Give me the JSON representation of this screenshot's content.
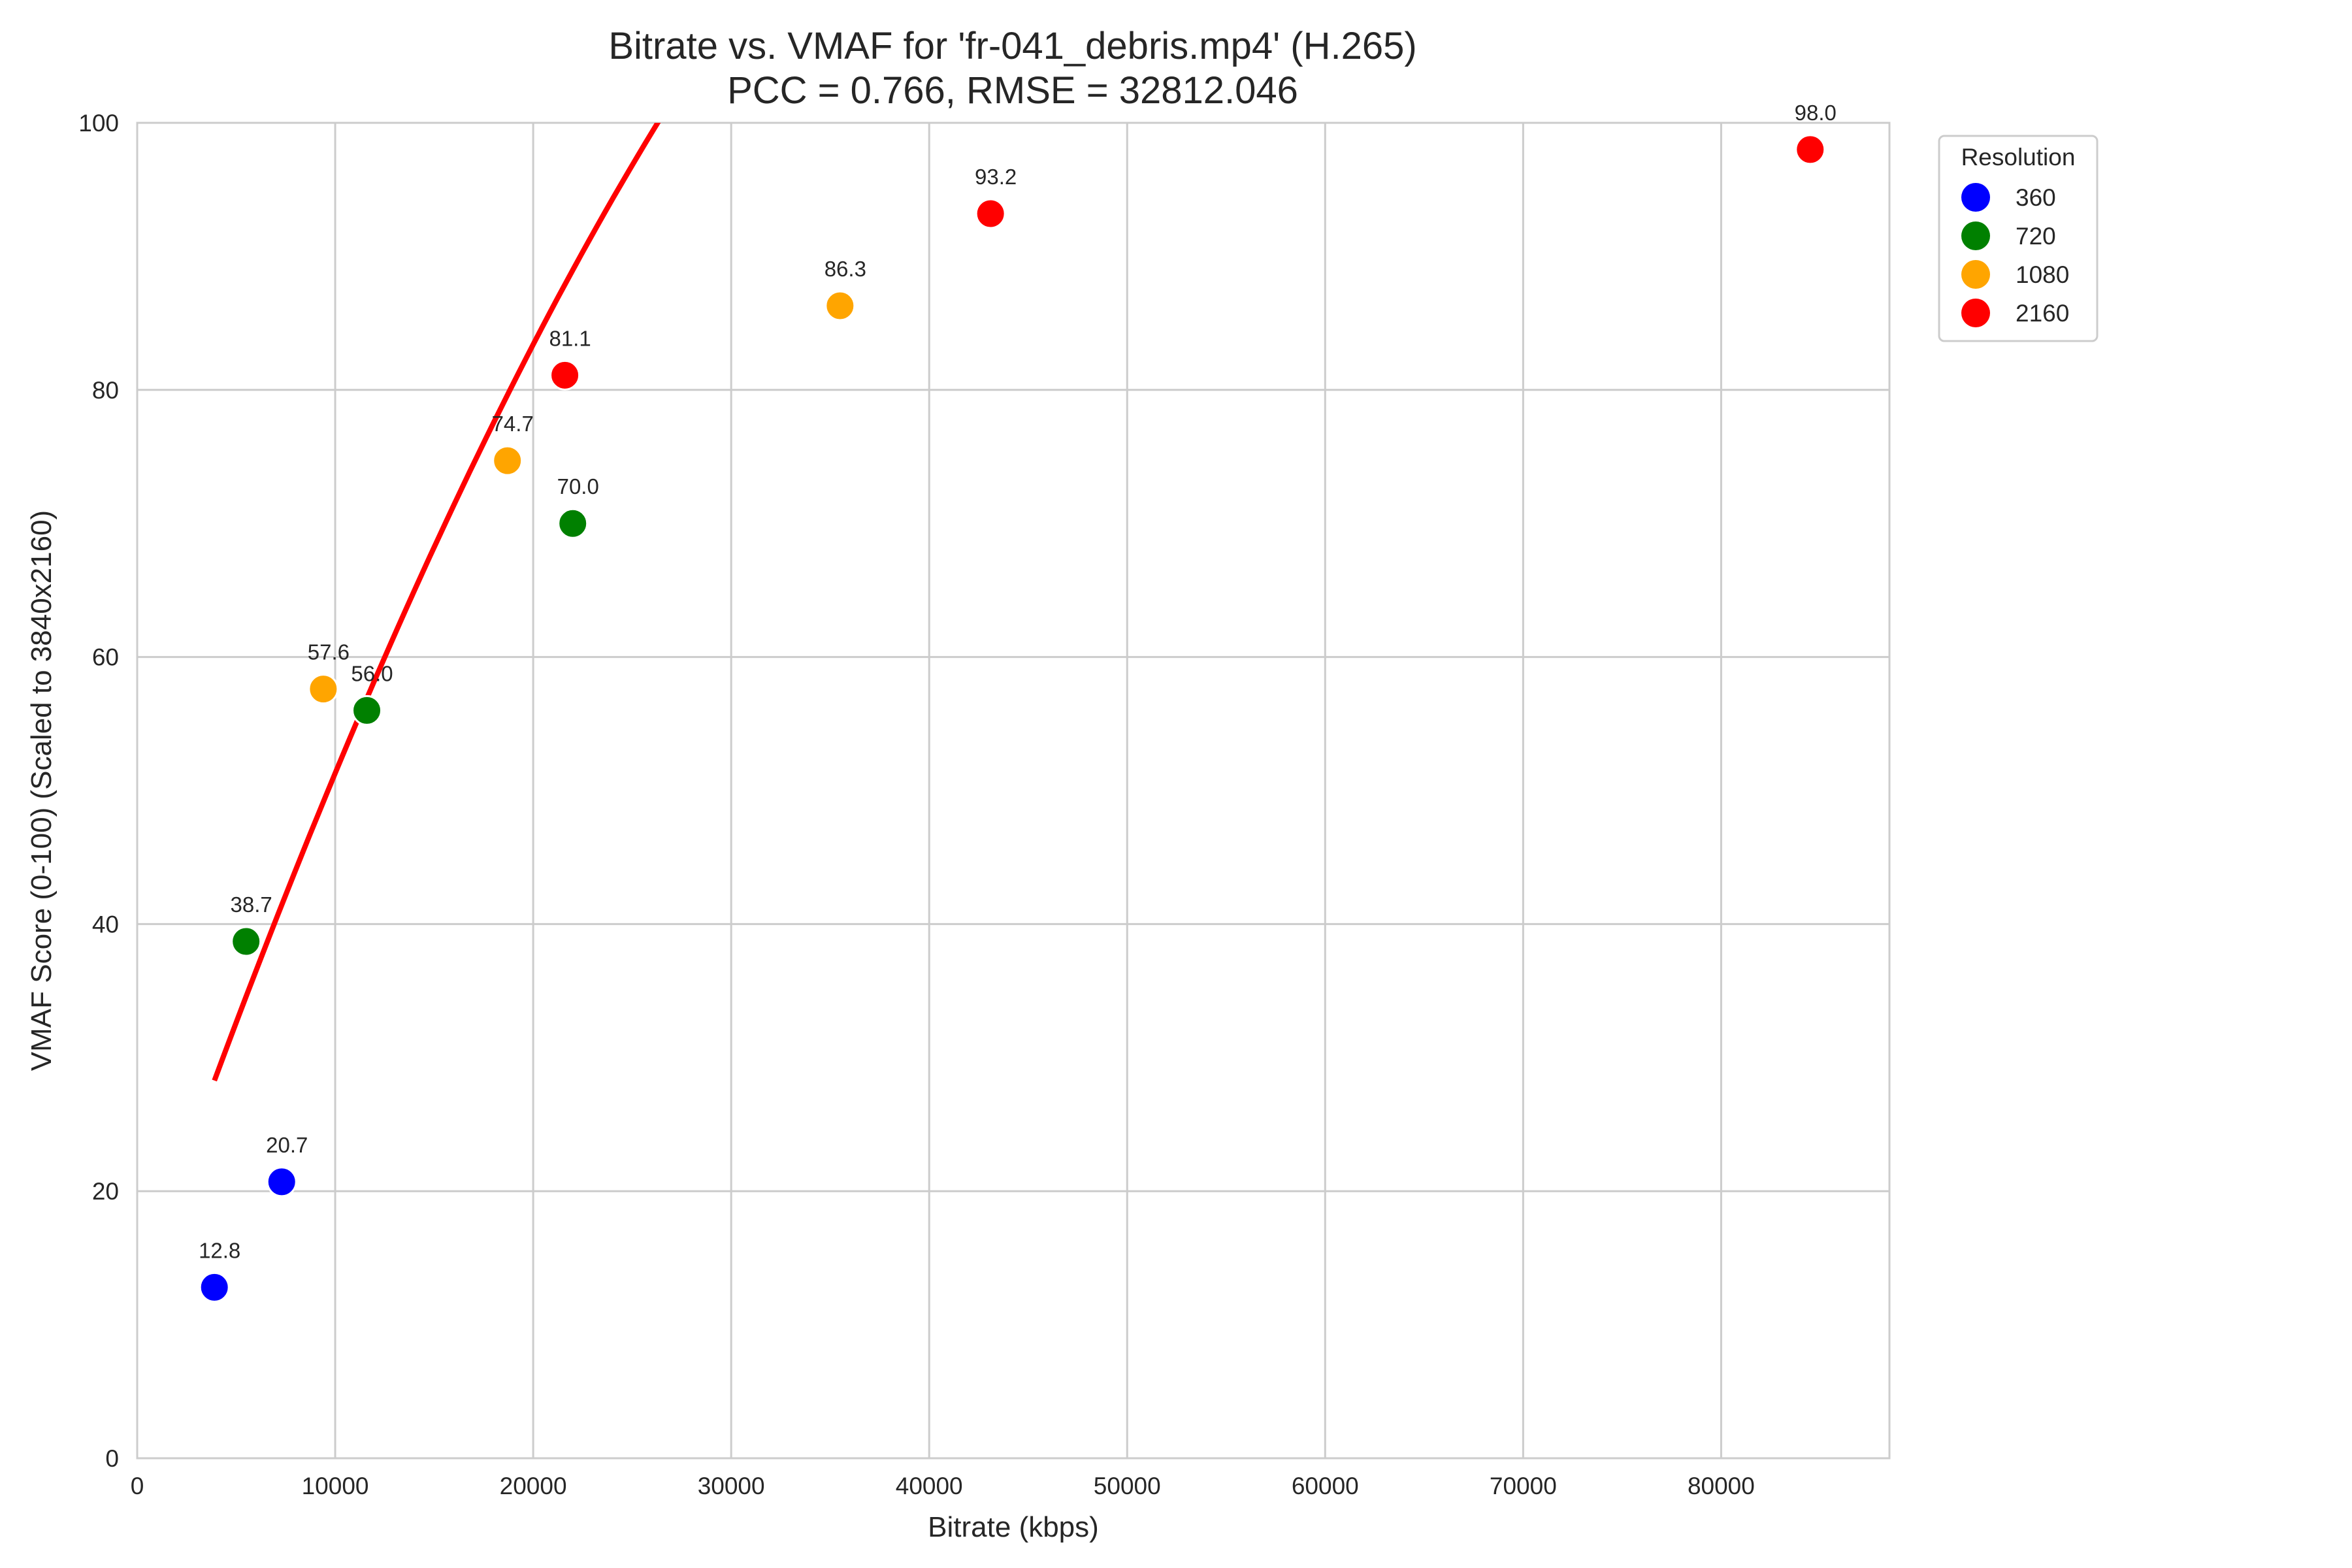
{
  "chart_data": {
    "type": "scatter",
    "title": "Bitrate vs. VMAF for 'fr-041_debris.mp4' (H.265)",
    "subtitle": "PCC = 0.766, RMSE = 32812.046",
    "xlabel": "Bitrate (kbps)",
    "ylabel": "VMAF Score (0-100) (Scaled to 3840x2160)",
    "xlim": [
      0,
      88500
    ],
    "ylim": [
      0,
      100
    ],
    "x_ticks": [
      0,
      10000,
      20000,
      30000,
      40000,
      50000,
      60000,
      70000,
      80000
    ],
    "x_tick_labels": [
      "0",
      "10000",
      "20000",
      "30000",
      "40000",
      "50000",
      "60000",
      "70000",
      "80000"
    ],
    "y_ticks": [
      0,
      20,
      40,
      60,
      80,
      100
    ],
    "y_tick_labels": [
      "0",
      "20",
      "40",
      "60",
      "80",
      "100"
    ],
    "grid": true,
    "legend": {
      "title": "Resolution",
      "placement": "outside-top-right",
      "entries": [
        "360",
        "720",
        "1080",
        "2160"
      ]
    },
    "series": [
      {
        "name": "360",
        "color": "#0000ff",
        "points": [
          {
            "x": 3900,
            "y": 12.8,
            "label": "12.8"
          },
          {
            "x": 7300,
            "y": 20.7,
            "label": "20.7"
          }
        ]
      },
      {
        "name": "720",
        "color": "#008000",
        "points": [
          {
            "x": 5500,
            "y": 38.7,
            "label": "38.7"
          },
          {
            "x": 11600,
            "y": 56.0,
            "label": "56.0"
          },
          {
            "x": 22000,
            "y": 70.0,
            "label": "70.0"
          }
        ]
      },
      {
        "name": "1080",
        "color": "#ffa500",
        "points": [
          {
            "x": 9400,
            "y": 57.6,
            "label": "57.6"
          },
          {
            "x": 18700,
            "y": 74.7,
            "label": "74.7"
          },
          {
            "x": 35500,
            "y": 86.3,
            "label": "86.3"
          }
        ]
      },
      {
        "name": "2160",
        "color": "#ff0000",
        "points": [
          {
            "x": 21600,
            "y": 81.1,
            "label": "81.1"
          },
          {
            "x": 43100,
            "y": 93.2,
            "label": "93.2"
          },
          {
            "x": 84500,
            "y": 98.0,
            "label": "98.0"
          }
        ]
      }
    ],
    "fit_curve": {
      "type": "quadratic",
      "color": "#ff0000",
      "x_range": [
        3900,
        84500
      ],
      "coefficients": [
        -3.5e-08,
        0.00426,
        12.2
      ]
    }
  }
}
